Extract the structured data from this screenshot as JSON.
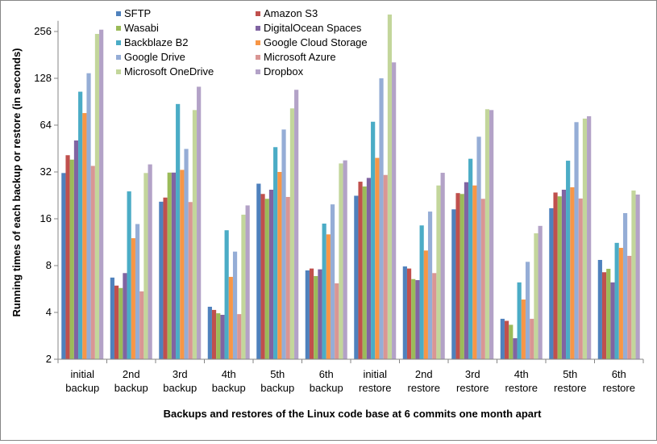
{
  "chart_data": {
    "type": "bar",
    "title": "",
    "xlabel": "Backups and restores of the Linux code base at 6 commits one month apart",
    "ylabel": "Running times of each backup or restore (in seconds)",
    "yscale": "log2",
    "ylim": [
      2,
      300
    ],
    "yticks": [
      2,
      4,
      8,
      16,
      32,
      64,
      128,
      256
    ],
    "grid": false,
    "legend_placement": "top-inside",
    "categories": [
      [
        "initial",
        "backup"
      ],
      [
        "2nd",
        "backup"
      ],
      [
        "3rd",
        "backup"
      ],
      [
        "4th",
        "backup"
      ],
      [
        "5th",
        "backup"
      ],
      [
        "6th",
        "backup"
      ],
      [
        "initial",
        "restore"
      ],
      [
        "2nd",
        "restore"
      ],
      [
        "3rd",
        "restore"
      ],
      [
        "4th",
        "restore"
      ],
      [
        "5th",
        "restore"
      ],
      [
        "6th",
        "restore"
      ]
    ],
    "series": [
      {
        "name": "SFTP",
        "color": "#4F81BD",
        "values": [
          31.5,
          6.7,
          20.6,
          4.35,
          26.9,
          7.45,
          22.5,
          7.9,
          18.4,
          3.64,
          18.7,
          8.7
        ]
      },
      {
        "name": "Amazon S3",
        "color": "#C0504D",
        "values": [
          41,
          5.95,
          21.9,
          4.15,
          23.1,
          7.66,
          27.7,
          7.66,
          23.4,
          3.53,
          23.6,
          7.25
        ]
      },
      {
        "name": "Wasabi",
        "color": "#9BBB59",
        "values": [
          38.4,
          5.74,
          31.7,
          3.95,
          21.5,
          6.85,
          25.8,
          6.55,
          23.1,
          3.33,
          22.3,
          7.63
        ]
      },
      {
        "name": "DigitalOcean Spaces",
        "color": "#8064A2",
        "values": [
          51,
          7.16,
          31.7,
          3.86,
          24.6,
          7.57,
          29.3,
          6.45,
          27.5,
          2.73,
          24.6,
          6.24
        ]
      },
      {
        "name": "Backblaze B2",
        "color": "#4BACC6",
        "values": [
          105,
          24,
          87.5,
          13.5,
          46.2,
          14.9,
          67.3,
          14.5,
          38.9,
          6.24,
          37.8,
          11.2
        ]
      },
      {
        "name": "Google Cloud Storage",
        "color": "#F79646",
        "values": [
          76.5,
          12,
          33,
          6.77,
          32,
          12.7,
          39.4,
          10,
          26.2,
          4.84,
          25.5,
          10.4
        ]
      },
      {
        "name": "Google Drive",
        "color": "#95ADD6",
        "values": [
          138,
          14.8,
          45,
          9.84,
          60,
          19.8,
          128,
          17.8,
          53.9,
          8.46,
          66.9,
          17.4
        ]
      },
      {
        "name": "Microsoft Azure",
        "color": "#D99694",
        "values": [
          35,
          5.46,
          20.5,
          3.9,
          22.1,
          6.15,
          30.6,
          7.16,
          21.5,
          3.64,
          21.6,
          9.24
        ]
      },
      {
        "name": "Microsoft OneDrive",
        "color": "#C3D69B",
        "values": [
          247,
          31.5,
          80,
          17,
          82,
          36.3,
          329,
          26.2,
          81,
          12.9,
          70.5,
          24.3
        ]
      },
      {
        "name": "Dropbox",
        "color": "#B3A2C7",
        "values": [
          263,
          35.8,
          113,
          19.5,
          108,
          38,
          162,
          31.6,
          80,
          14.4,
          73,
          22.9
        ]
      }
    ]
  }
}
